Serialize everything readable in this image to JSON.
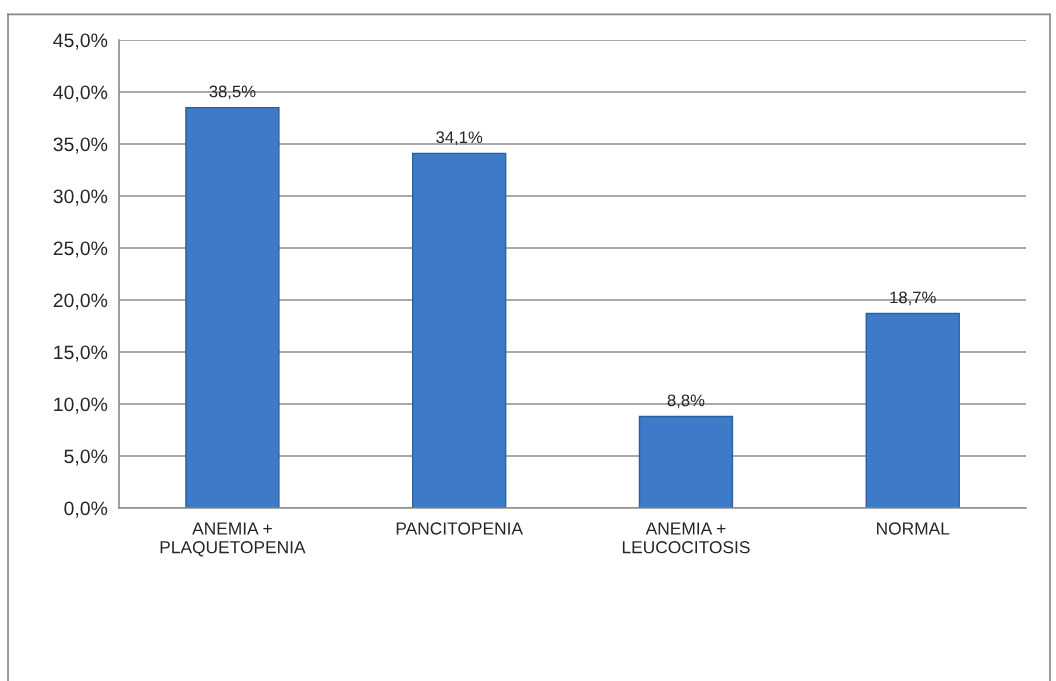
{
  "chart_data": {
    "type": "bar",
    "categories": [
      "ANEMIA +\nPLAQUETOPENIA",
      "PANCITOPENIA",
      "ANEMIA +\nLEUCOCITOSIS",
      "NORMAL"
    ],
    "values": [
      38.5,
      34.1,
      8.8,
      18.7
    ],
    "value_labels": [
      "38,5%",
      "34,1%",
      "8,8%",
      "18,7%"
    ],
    "color": "#3d7bc8",
    "ylim": [
      0,
      45
    ],
    "yticks": [
      {
        "value": 0,
        "label": "0,0%"
      },
      {
        "value": 5,
        "label": "5,0%"
      },
      {
        "value": 10,
        "label": "10,0%"
      },
      {
        "value": 15,
        "label": "15,0%"
      },
      {
        "value": 20,
        "label": "20,0%"
      },
      {
        "value": 25,
        "label": "25,0%"
      },
      {
        "value": 30,
        "label": "30,0%"
      },
      {
        "value": 35,
        "label": "35,0%"
      },
      {
        "value": 40,
        "label": "40,0%"
      },
      {
        "value": 45,
        "label": "45,0%"
      }
    ],
    "grid": "y"
  }
}
